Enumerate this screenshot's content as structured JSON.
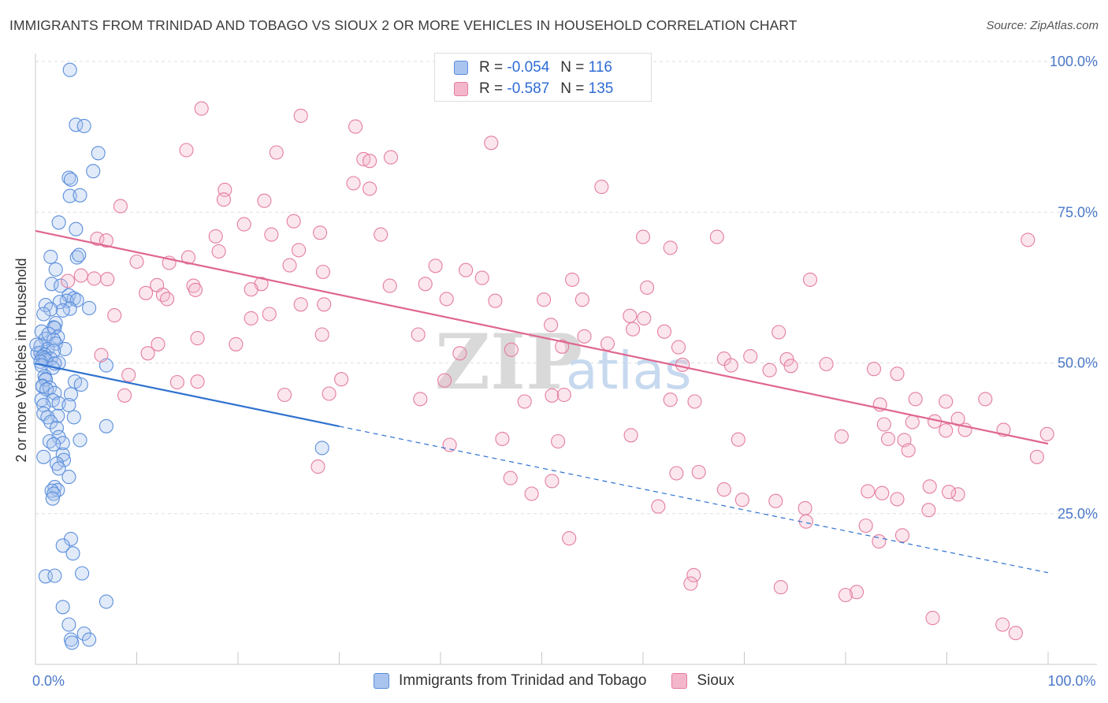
{
  "title": "IMMIGRANTS FROM TRINIDAD AND TOBAGO VS SIOUX 2 OR MORE VEHICLES IN HOUSEHOLD CORRELATION CHART",
  "source": "Source: ZipAtlas.com",
  "watermark": {
    "zip": "ZIP",
    "atlas": "atlas"
  },
  "colors": {
    "blue_fill": "#a9c4ee",
    "blue_stroke": "#5b8fdc",
    "blue_line": "#2f72d0",
    "pink_fill": "#f4b6ca",
    "pink_stroke": "#e47da0",
    "pink_line": "#e06690",
    "tick_text": "#4a78c8",
    "grid": "#dddddd"
  },
  "legend": {
    "rows": [
      {
        "r_label": "R =",
        "r_value": "-0.054",
        "n_label": "N =",
        "n_value": "116",
        "swatch": "blue"
      },
      {
        "r_label": "R =",
        "r_value": "-0.587",
        "n_label": "N =",
        "n_value": "135",
        "swatch": "pink"
      }
    ]
  },
  "bottom_legend": [
    "Immigrants from Trinidad and Tobago",
    "Sioux"
  ],
  "chart_data": {
    "type": "scatter",
    "title": "IMMIGRANTS FROM TRINIDAD AND TOBAGO VS SIOUX 2 OR MORE VEHICLES IN HOUSEHOLD CORRELATION CHART",
    "xlabel": "",
    "ylabel": "2 or more Vehicles in Household",
    "xlim": [
      0,
      100
    ],
    "ylim": [
      0,
      100
    ],
    "x_tick_labels": [
      {
        "value": 0,
        "label": "0.0%"
      },
      {
        "value": 100,
        "label": "100.0%"
      }
    ],
    "y_tick_labels": [
      {
        "value": 25,
        "label": "25.0%"
      },
      {
        "value": 50,
        "label": "50.0%"
      },
      {
        "value": 75,
        "label": "75.0%"
      },
      {
        "value": 100,
        "label": "100.0%"
      }
    ],
    "x_minor_ticks": [
      0,
      10,
      20,
      30,
      40,
      50,
      60,
      70,
      80,
      90,
      100
    ],
    "grid": true,
    "legend_position": "top-center",
    "series": [
      {
        "name": "Immigrants from Trinidad and Tobago",
        "color": "blue",
        "R": -0.054,
        "N": 116,
        "trend": {
          "x_start": 0,
          "y_start": 49.9,
          "x_solid_end": 30,
          "x_end": 100,
          "y_end": 15.2
        },
        "points": [
          [
            3.4,
            98.6
          ],
          [
            4.0,
            89.5
          ],
          [
            4.8,
            89.3
          ],
          [
            6.2,
            84.8
          ],
          [
            5.7,
            81.8
          ],
          [
            3.3,
            80.7
          ],
          [
            3.5,
            80.4
          ],
          [
            3.4,
            77.7
          ],
          [
            4.4,
            77.8
          ],
          [
            2.3,
            73.3
          ],
          [
            4.0,
            72.2
          ],
          [
            1.5,
            67.6
          ],
          [
            4.1,
            67.5
          ],
          [
            4.3,
            67.9
          ],
          [
            2.0,
            65.5
          ],
          [
            1.6,
            63.1
          ],
          [
            2.5,
            62.8
          ],
          [
            3.3,
            61.2
          ],
          [
            3.8,
            60.7
          ],
          [
            3.1,
            60.3
          ],
          [
            2.4,
            60.1
          ],
          [
            4.1,
            60.4
          ],
          [
            1.0,
            59.6
          ],
          [
            3.4,
            59.0
          ],
          [
            5.3,
            59.1
          ],
          [
            2.7,
            58.7
          ],
          [
            1.5,
            58.9
          ],
          [
            0.8,
            58.1
          ],
          [
            2.0,
            56.6
          ],
          [
            1.8,
            55.9
          ],
          [
            1.9,
            55.8
          ],
          [
            0.6,
            55.2
          ],
          [
            1.0,
            54.0
          ],
          [
            2.2,
            54.3
          ],
          [
            1.3,
            54.8
          ],
          [
            1.8,
            53.8
          ],
          [
            2.0,
            53.2
          ],
          [
            0.5,
            52.8
          ],
          [
            1.2,
            52.3
          ],
          [
            2.9,
            52.3
          ],
          [
            0.2,
            51.6
          ],
          [
            0.5,
            51.7
          ],
          [
            1.8,
            52.0
          ],
          [
            0.9,
            51.4
          ],
          [
            0.7,
            51.0
          ],
          [
            0.9,
            50.8
          ],
          [
            1.5,
            50.7
          ],
          [
            1.0,
            50.5
          ],
          [
            0.5,
            50.2
          ],
          [
            0.6,
            49.6
          ],
          [
            2.3,
            50.0
          ],
          [
            1.9,
            49.9
          ],
          [
            1.7,
            49.2
          ],
          [
            7.0,
            49.6
          ],
          [
            0.9,
            47.8
          ],
          [
            1.0,
            47.3
          ],
          [
            1.0,
            47.2
          ],
          [
            0.7,
            46.2
          ],
          [
            0.7,
            46.1
          ],
          [
            1.4,
            45.9
          ],
          [
            3.9,
            46.9
          ],
          [
            4.5,
            46.4
          ],
          [
            1.1,
            45.6
          ],
          [
            1.9,
            45.0
          ],
          [
            3.5,
            44.8
          ],
          [
            1.7,
            43.8
          ],
          [
            0.6,
            43.9
          ],
          [
            0.8,
            43.0
          ],
          [
            2.3,
            43.3
          ],
          [
            3.3,
            43.0
          ],
          [
            0.8,
            41.6
          ],
          [
            2.2,
            41.2
          ],
          [
            1.2,
            41.0
          ],
          [
            3.8,
            41.0
          ],
          [
            1.5,
            40.2
          ],
          [
            2.1,
            39.2
          ],
          [
            7.0,
            39.5
          ],
          [
            2.3,
            37.7
          ],
          [
            4.4,
            37.2
          ],
          [
            1.4,
            37.0
          ],
          [
            2.7,
            36.7
          ],
          [
            1.8,
            36.5
          ],
          [
            2.7,
            34.8
          ],
          [
            0.8,
            34.4
          ],
          [
            2.8,
            33.9
          ],
          [
            2.1,
            33.3
          ],
          [
            2.3,
            32.5
          ],
          [
            3.3,
            31.1
          ],
          [
            1.9,
            29.4
          ],
          [
            2.2,
            28.9
          ],
          [
            1.6,
            28.8
          ],
          [
            1.8,
            28.3
          ],
          [
            1.7,
            27.5
          ],
          [
            28.3,
            35.9
          ],
          [
            3.5,
            20.8
          ],
          [
            2.7,
            19.7
          ],
          [
            3.7,
            18.4
          ],
          [
            4.6,
            15.1
          ],
          [
            1.0,
            14.6
          ],
          [
            1.9,
            14.7
          ],
          [
            7.0,
            10.4
          ],
          [
            2.7,
            9.5
          ],
          [
            3.3,
            6.6
          ],
          [
            4.8,
            5.1
          ],
          [
            3.5,
            4.1
          ],
          [
            3.6,
            3.6
          ],
          [
            5.3,
            4.1
          ],
          [
            0.1,
            53.0
          ]
        ]
      },
      {
        "name": "Sioux",
        "color": "pink",
        "R": -0.587,
        "N": 135,
        "trend": {
          "x_start": 0,
          "y_start": 71.9,
          "x_end": 100,
          "y_end": 36.6
        },
        "points": [
          [
            16.4,
            92.2
          ],
          [
            26.2,
            91.0
          ],
          [
            31.6,
            89.2
          ],
          [
            14.9,
            85.3
          ],
          [
            23.8,
            84.9
          ],
          [
            32.4,
            83.8
          ],
          [
            33.0,
            83.5
          ],
          [
            35.1,
            84.1
          ],
          [
            45.0,
            86.5
          ],
          [
            31.4,
            79.8
          ],
          [
            33.0,
            78.9
          ],
          [
            18.7,
            78.7
          ],
          [
            18.6,
            77.1
          ],
          [
            22.6,
            76.9
          ],
          [
            55.9,
            79.2
          ],
          [
            8.4,
            76.0
          ],
          [
            20.6,
            73.0
          ],
          [
            25.5,
            73.5
          ],
          [
            17.8,
            71.0
          ],
          [
            23.3,
            71.3
          ],
          [
            28.1,
            71.6
          ],
          [
            34.1,
            71.3
          ],
          [
            6.1,
            70.6
          ],
          [
            7.0,
            70.3
          ],
          [
            60.0,
            70.9
          ],
          [
            67.3,
            70.9
          ],
          [
            98.0,
            70.4
          ],
          [
            18.1,
            68.5
          ],
          [
            26.0,
            68.7
          ],
          [
            62.7,
            69.1
          ],
          [
            13.2,
            66.6
          ],
          [
            15.1,
            67.5
          ],
          [
            10.0,
            66.8
          ],
          [
            25.1,
            66.2
          ],
          [
            42.5,
            65.4
          ],
          [
            28.4,
            65.1
          ],
          [
            22.3,
            63.1
          ],
          [
            38.5,
            63.1
          ],
          [
            44.1,
            64.1
          ],
          [
            39.5,
            66.1
          ],
          [
            53.0,
            63.8
          ],
          [
            5.8,
            64.0
          ],
          [
            7.1,
            63.9
          ],
          [
            4.5,
            64.5
          ],
          [
            3.2,
            63.6
          ],
          [
            60.4,
            62.5
          ],
          [
            76.5,
            63.8
          ],
          [
            15.6,
            62.8
          ],
          [
            12.0,
            62.9
          ],
          [
            15.8,
            62.1
          ],
          [
            21.3,
            62.2
          ],
          [
            35.0,
            62.8
          ],
          [
            10.9,
            61.6
          ],
          [
            12.6,
            61.3
          ],
          [
            13.0,
            60.6
          ],
          [
            40.6,
            60.6
          ],
          [
            45.4,
            60.3
          ],
          [
            50.2,
            60.5
          ],
          [
            54.0,
            60.5
          ],
          [
            58.7,
            57.8
          ],
          [
            60.1,
            57.4
          ],
          [
            7.8,
            57.9
          ],
          [
            23.1,
            58.1
          ],
          [
            21.3,
            57.4
          ],
          [
            26.2,
            59.7
          ],
          [
            28.5,
            59.7
          ],
          [
            50.9,
            56.3
          ],
          [
            59.0,
            55.6
          ],
          [
            62.1,
            55.2
          ],
          [
            73.4,
            55.1
          ],
          [
            63.5,
            52.6
          ],
          [
            68.0,
            50.7
          ],
          [
            70.6,
            51.1
          ],
          [
            74.2,
            50.6
          ],
          [
            47.0,
            52.2
          ],
          [
            41.9,
            51.6
          ],
          [
            52.0,
            52.7
          ],
          [
            54.2,
            54.4
          ],
          [
            56.5,
            53.2
          ],
          [
            37.8,
            54.7
          ],
          [
            28.3,
            54.7
          ],
          [
            16.0,
            54.1
          ],
          [
            19.8,
            53.1
          ],
          [
            12.1,
            53.1
          ],
          [
            11.1,
            51.6
          ],
          [
            6.5,
            51.3
          ],
          [
            63.9,
            49.7
          ],
          [
            68.7,
            49.6
          ],
          [
            74.6,
            49.5
          ],
          [
            72.5,
            48.8
          ],
          [
            82.8,
            49.0
          ],
          [
            85.1,
            48.2
          ],
          [
            9.2,
            48.0
          ],
          [
            14.0,
            46.8
          ],
          [
            16.0,
            46.9
          ],
          [
            8.8,
            44.6
          ],
          [
            29.0,
            44.9
          ],
          [
            24.6,
            44.7
          ],
          [
            30.2,
            47.3
          ],
          [
            40.4,
            47.1
          ],
          [
            38.0,
            44.0
          ],
          [
            51.0,
            44.6
          ],
          [
            52.2,
            44.7
          ],
          [
            48.3,
            43.6
          ],
          [
            62.7,
            43.9
          ],
          [
            65.1,
            43.6
          ],
          [
            83.4,
            43.1
          ],
          [
            86.9,
            44.0
          ],
          [
            89.9,
            43.6
          ],
          [
            93.8,
            44.0
          ],
          [
            78.1,
            49.8
          ],
          [
            83.8,
            39.8
          ],
          [
            86.6,
            40.2
          ],
          [
            88.8,
            40.3
          ],
          [
            91.1,
            40.7
          ],
          [
            95.6,
            38.9
          ],
          [
            99.9,
            38.2
          ],
          [
            58.8,
            38.0
          ],
          [
            69.4,
            37.3
          ],
          [
            84.2,
            37.4
          ],
          [
            89.9,
            38.8
          ],
          [
            91.8,
            38.9
          ],
          [
            79.6,
            37.8
          ],
          [
            85.8,
            37.2
          ],
          [
            86.2,
            35.5
          ],
          [
            98.9,
            34.4
          ],
          [
            27.9,
            32.8
          ],
          [
            65.5,
            31.9
          ],
          [
            83.6,
            28.4
          ],
          [
            91.1,
            28.2
          ],
          [
            82.2,
            28.7
          ],
          [
            85.1,
            27.4
          ],
          [
            88.3,
            29.5
          ],
          [
            90.2,
            28.6
          ],
          [
            88.2,
            25.6
          ],
          [
            68.0,
            29.0
          ],
          [
            40.9,
            36.4
          ],
          [
            46.1,
            37.4
          ],
          [
            51.6,
            37.0
          ],
          [
            63.3,
            31.7
          ],
          [
            69.8,
            27.3
          ],
          [
            73.1,
            27.1
          ],
          [
            76.0,
            25.9
          ],
          [
            61.5,
            26.2
          ],
          [
            76.1,
            23.7
          ],
          [
            83.3,
            20.4
          ],
          [
            85.6,
            21.4
          ],
          [
            46.9,
            30.9
          ],
          [
            51.0,
            30.4
          ],
          [
            49.0,
            28.3
          ],
          [
            52.7,
            20.9
          ],
          [
            65.0,
            14.8
          ],
          [
            64.7,
            13.4
          ],
          [
            73.6,
            12.8
          ],
          [
            81.1,
            12.0
          ],
          [
            80.0,
            11.5
          ],
          [
            88.6,
            7.7
          ],
          [
            95.5,
            6.6
          ],
          [
            96.8,
            5.2
          ],
          [
            82.0,
            23.0
          ]
        ]
      }
    ]
  }
}
